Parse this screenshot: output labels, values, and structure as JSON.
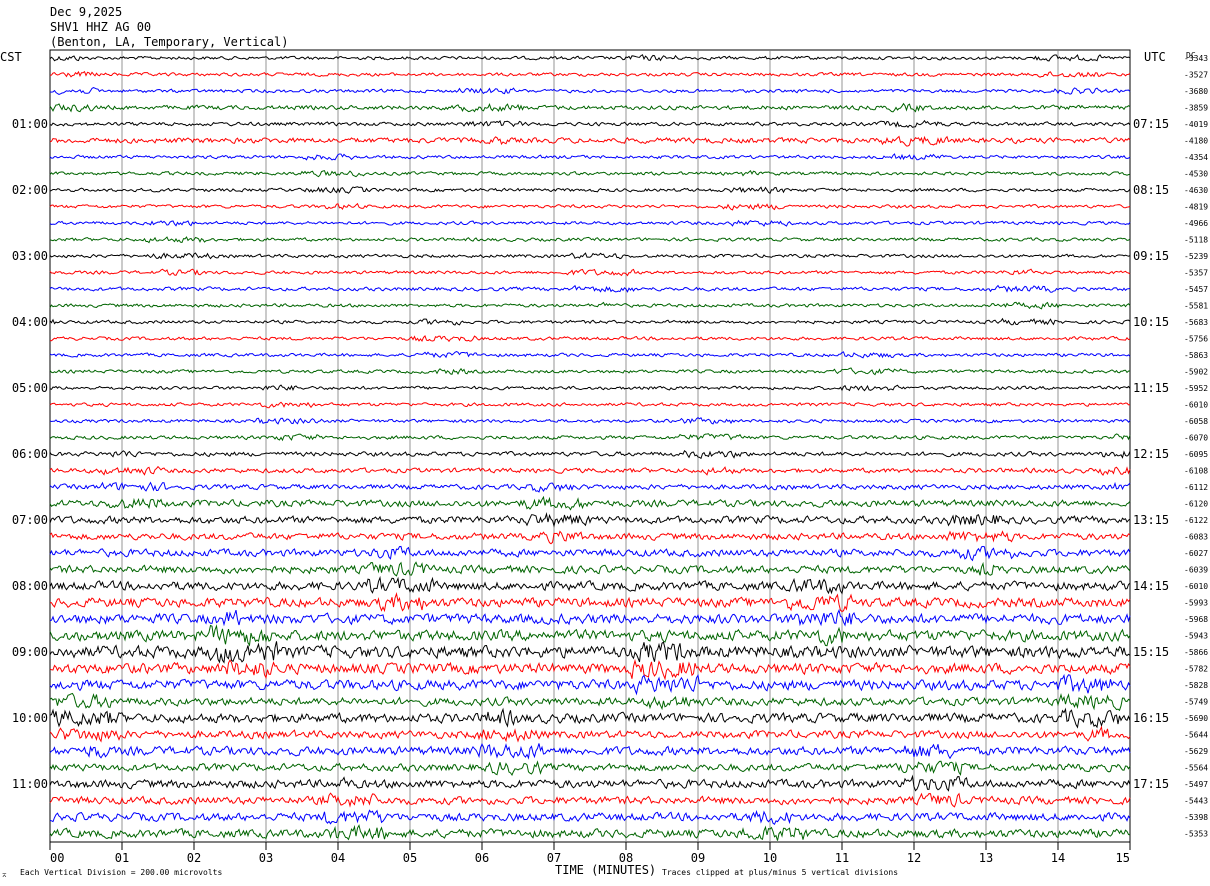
{
  "header": {
    "date": "Dec 9,2025",
    "station": "SHV1 HHZ AG 00",
    "location": "(Benton, LA, Temporary, Vertical)"
  },
  "left_label": "CST",
  "right_label": "UTC",
  "dc_label": "DC",
  "footer": {
    "scale": "Each Vertical Division =  200.00 microvolts",
    "clip": "Traces clipped at plus/minus 5 vertical divisions",
    "corner": "⌅"
  },
  "colors": [
    "#000000",
    "#ff0000",
    "#0000ff",
    "#006400"
  ],
  "chart_data": {
    "type": "line",
    "title": "Dec 9,2025",
    "xlabel": "TIME (MINUTES)",
    "ylabel": "",
    "x_ticks": [
      "00",
      "01",
      "02",
      "03",
      "04",
      "05",
      "06",
      "07",
      "08",
      "09",
      "10",
      "11",
      "12",
      "13",
      "14",
      "15"
    ],
    "xlim": [
      0,
      15
    ],
    "rows": 48,
    "minutes_per_row": 15,
    "left_times": [
      "01:00",
      "02:00",
      "03:00",
      "04:00",
      "05:00",
      "06:00",
      "07:00",
      "08:00",
      "09:00",
      "10:00",
      "11:00"
    ],
    "right_times": [
      "07:15",
      "08:15",
      "09:15",
      "10:15",
      "11:15",
      "12:15",
      "13:15",
      "14:15",
      "15:15",
      "16:15",
      "17:15"
    ],
    "dc_values": [
      "-3343",
      "-3527",
      "-3680",
      "-3859",
      "-4019",
      "-4180",
      "-4354",
      "-4530",
      "-4630",
      "-4819",
      "-4966",
      "-5118",
      "-5239",
      "-5357",
      "-5457",
      "-5581",
      "-5683",
      "-5756",
      "-5863",
      "-5902",
      "-5952",
      "-6010",
      "-6058",
      "-6070",
      "-6095",
      "-6108",
      "-6112",
      "-6120",
      "-6122",
      "-6083",
      "-6027",
      "-6039",
      "-6010",
      "-5993",
      "-5968",
      "-5943",
      "-5866",
      "-5782",
      "-5828",
      "-5749",
      "-5690",
      "-5644",
      "-5629",
      "-5564",
      "-5497",
      "-5443",
      "-5398",
      "-5353"
    ],
    "amplitude": [
      1.0,
      1.0,
      1.0,
      1.3,
      1.1,
      1.6,
      1.0,
      1.0,
      1.0,
      1.0,
      1.0,
      1.0,
      1.0,
      1.0,
      1.1,
      1.0,
      1.0,
      1.0,
      1.0,
      1.0,
      1.0,
      1.0,
      1.0,
      1.1,
      1.3,
      1.4,
      1.5,
      2.0,
      2.2,
      2.0,
      2.2,
      2.3,
      2.6,
      2.8,
      3.0,
      3.2,
      3.6,
      3.1,
      3.0,
      2.4,
      2.8,
      2.3,
      2.6,
      2.2,
      2.5,
      2.3,
      2.4,
      2.5
    ],
    "grid": true
  }
}
